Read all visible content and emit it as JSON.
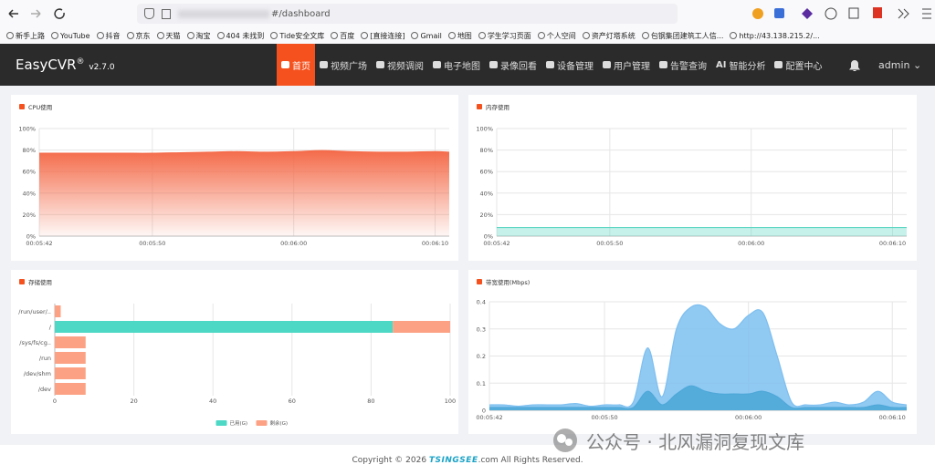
{
  "browser": {
    "url_path": "#/dashboard",
    "bookmarks": [
      "新手上路",
      "YouTube",
      "抖音",
      "京东",
      "天猫",
      "淘宝",
      "404 未找到",
      "Tide安全文库",
      "百度",
      "[直接连接]",
      "Gmail",
      "地图",
      "学生学习页面",
      "个人空间",
      "资产灯塔系统",
      "包钢集团建筑工人信...",
      "http://43.138.215.2/..."
    ]
  },
  "app": {
    "brand": "EasyCVR",
    "registered": "®",
    "version": "v2.7.0",
    "nav": [
      {
        "label": "首页"
      },
      {
        "label": "视频广场"
      },
      {
        "label": "视频调阅"
      },
      {
        "label": "电子地图"
      },
      {
        "label": "录像回看"
      },
      {
        "label": "设备管理"
      },
      {
        "label": "用户管理"
      },
      {
        "label": "告警查询"
      },
      {
        "badge": "AI",
        "label": "智能分析"
      },
      {
        "label": "配置中心"
      }
    ],
    "user": "admin"
  },
  "chart_data": [
    {
      "type": "area",
      "title": "CPU使用",
      "fill_style": "gradient",
      "grid": true,
      "x": [
        "00:05:42",
        "00:05:44",
        "00:05:46",
        "00:05:48",
        "00:05:50",
        "00:05:52",
        "00:05:54",
        "00:05:56",
        "00:05:58",
        "00:06:00",
        "00:06:02",
        "00:06:04",
        "00:06:06",
        "00:06:08",
        "00:06:10",
        "00:06:11"
      ],
      "xlim": [
        "00:05:42",
        "00:06:11"
      ],
      "xticks": [
        "00:05:42",
        "00:05:50",
        "00:06:00",
        "00:06:10"
      ],
      "ylim": [
        0,
        100
      ],
      "yticks": [
        {
          "value": 0,
          "label": "0%"
        },
        {
          "value": 20,
          "label": "20%"
        },
        {
          "value": 40,
          "label": "40%"
        },
        {
          "value": 60,
          "label": "60%"
        },
        {
          "value": 80,
          "label": "80%"
        },
        {
          "value": 100,
          "label": "100%"
        }
      ],
      "series": [
        {
          "color": "#f46b4a",
          "values": [
            77,
            77,
            77,
            77,
            77,
            77.5,
            78,
            78.5,
            78,
            78.5,
            79.5,
            78.5,
            78,
            78,
            78.5,
            78
          ]
        }
      ]
    },
    {
      "type": "area",
      "title": "内存使用",
      "fill_style": "solid",
      "grid": true,
      "x": [
        "00:05:42",
        "00:05:44",
        "00:05:46",
        "00:05:48",
        "00:05:50",
        "00:05:52",
        "00:05:54",
        "00:05:56",
        "00:05:58",
        "00:06:00",
        "00:06:02",
        "00:06:04",
        "00:06:06",
        "00:06:08",
        "00:06:10",
        "00:06:11"
      ],
      "xlim": [
        "00:05:42",
        "00:06:11"
      ],
      "xticks": [
        "00:05:42",
        "00:05:50",
        "00:06:00",
        "00:06:10"
      ],
      "ylim": [
        0,
        100
      ],
      "yticks": [
        {
          "value": 0,
          "label": "0%"
        },
        {
          "value": 20,
          "label": "20%"
        },
        {
          "value": 40,
          "label": "40%"
        },
        {
          "value": 60,
          "label": "60%"
        },
        {
          "value": 80,
          "label": "80%"
        },
        {
          "value": 100,
          "label": "100%"
        }
      ],
      "series": [
        {
          "color": "#5dd6c4",
          "values": [
            8,
            8,
            8,
            8,
            8,
            8,
            8,
            8,
            8,
            8,
            8,
            8,
            8,
            8,
            8,
            8
          ]
        }
      ]
    },
    {
      "type": "hbar_stacked",
      "title": "存储使用",
      "grid": true,
      "legend": "bottom",
      "categories": [
        "/run/user/..",
        "/",
        "/sys/fs/cg..",
        "/run",
        "/dev/shm",
        "/dev"
      ],
      "xlim": [
        0,
        100
      ],
      "xticks": [
        0,
        20,
        40,
        60,
        80,
        100
      ],
      "series": [
        {
          "name": "已用(G)",
          "color": "#4dd8c6",
          "values": [
            0,
            85.5,
            0,
            0,
            0,
            0
          ]
        },
        {
          "name": "剩余(G)",
          "color": "#fca184",
          "values": [
            1.5,
            14.5,
            7.8,
            7.8,
            7.8,
            7.8
          ]
        }
      ]
    },
    {
      "type": "area",
      "title": "带宽使用(Mbps)",
      "fill_style": "solid",
      "grid": true,
      "x": [
        "00:05:42",
        "00:05:43",
        "00:05:44",
        "00:05:45",
        "00:05:46",
        "00:05:47",
        "00:05:48",
        "00:05:49",
        "00:05:50",
        "00:05:51",
        "00:05:52",
        "00:05:53",
        "00:05:54",
        "00:05:55",
        "00:05:56",
        "00:05:57",
        "00:05:58",
        "00:05:59",
        "00:06:00",
        "00:06:01",
        "00:06:02",
        "00:06:03",
        "00:06:04",
        "00:06:05",
        "00:06:06",
        "00:06:07",
        "00:06:08",
        "00:06:09",
        "00:06:10",
        "00:06:11"
      ],
      "xlim": [
        "00:05:42",
        "00:06:11"
      ],
      "xticks": [
        "00:05:42",
        "00:05:50",
        "00:06:00",
        "00:06:10"
      ],
      "ylim": [
        0,
        0.4
      ],
      "yticks": [
        0,
        0.1,
        0.2,
        0.3,
        0.4
      ],
      "series": [
        {
          "color": "#7dbff0",
          "values": [
            0.02,
            0.02,
            0.015,
            0.02,
            0.02,
            0.02,
            0.025,
            0.015,
            0.02,
            0.02,
            0.03,
            0.23,
            0.05,
            0.3,
            0.38,
            0.38,
            0.32,
            0.3,
            0.35,
            0.36,
            0.2,
            0.03,
            0.02,
            0.02,
            0.03,
            0.02,
            0.03,
            0.07,
            0.03,
            0.02
          ]
        },
        {
          "color": "#4ea8d8",
          "values": [
            0.01,
            0.01,
            0.01,
            0.01,
            0.01,
            0.01,
            0.01,
            0.01,
            0.01,
            0.01,
            0.01,
            0.07,
            0.02,
            0.06,
            0.09,
            0.07,
            0.06,
            0.06,
            0.06,
            0.07,
            0.05,
            0.01,
            0.01,
            0.01,
            0.01,
            0.01,
            0.01,
            0.02,
            0.01,
            0.01
          ]
        }
      ]
    }
  ],
  "footer": {
    "prefix": "Copyright © 2026",
    "logo": "TSINGSEE",
    "suffix": ".com All Rights Reserved."
  },
  "watermark": "公众号 · 北风漏洞复现文库"
}
